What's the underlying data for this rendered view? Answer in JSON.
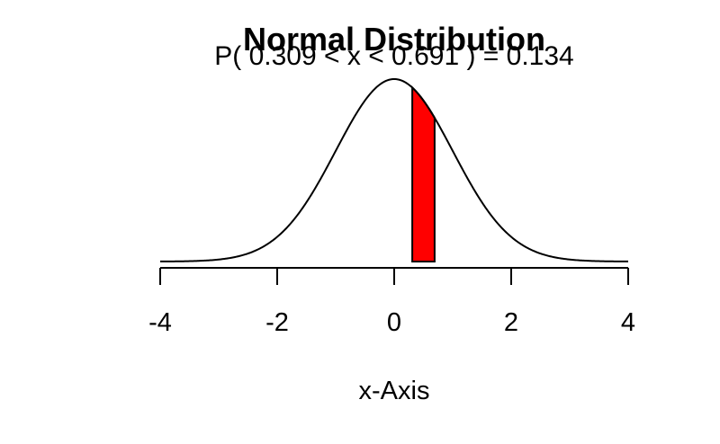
{
  "chart_data": {
    "type": "area",
    "title": "Normal Distribution",
    "subtitle": "P( 0.309 < x < 0.691 ) = 0.134",
    "xlabel": "x-Axis",
    "ylabel": "",
    "xlim": [
      -4,
      4
    ],
    "x_ticks": [
      -4,
      -2,
      0,
      2,
      4
    ],
    "x_tick_labels": [
      "-4",
      "-2",
      "0",
      "2",
      "4"
    ],
    "distribution": {
      "name": "normal",
      "mean": 0,
      "sd": 1
    },
    "shaded_region": {
      "from": 0.309,
      "to": 0.691,
      "probability": 0.134,
      "color": "#ff0000"
    },
    "curve_color": "#000000",
    "grid": false
  }
}
